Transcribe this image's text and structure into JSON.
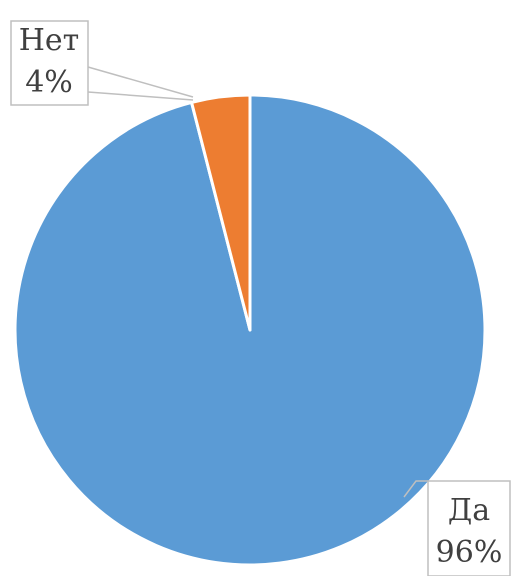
{
  "chart_data": {
    "type": "pie",
    "categories": [
      "Да",
      "Нет"
    ],
    "values": [
      96,
      4
    ],
    "value_labels": [
      "96%",
      "4%"
    ],
    "colors": [
      "#5b9bd5",
      "#ed7d31"
    ]
  }
}
